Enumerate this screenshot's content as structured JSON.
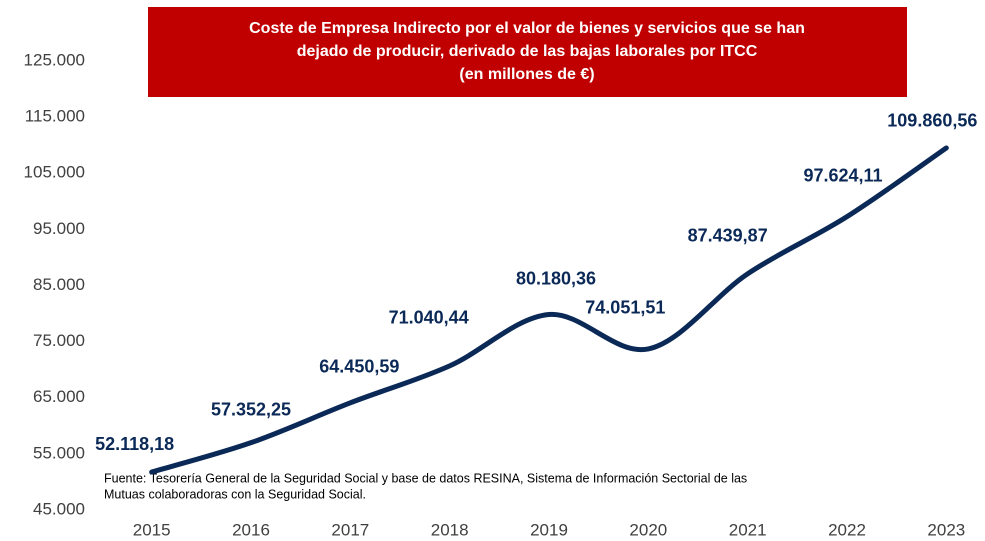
{
  "chart_data": {
    "type": "line",
    "title": [
      "Coste de Empresa Indirecto por el valor de bienes y servicios que se han",
      "dejado de producir, derivado de las bajas laborales por ITCC",
      "(en millones de €)"
    ],
    "source": [
      "Fuente: Tesorería General de la Seguridad Social y base de datos RESINA, Sistema de Información Sectorial de las",
      "Mutuas colaboradoras con la Seguridad Social."
    ],
    "categories": [
      "2015",
      "2016",
      "2017",
      "2018",
      "2019",
      "2020",
      "2021",
      "2022",
      "2023"
    ],
    "values": [
      52118.18,
      57352.25,
      64450.59,
      71040.44,
      80180.36,
      74051.51,
      87439.87,
      97624.11,
      109860.56
    ],
    "value_labels": [
      "52.118,18",
      "57.352,25",
      "64.450,59",
      "71.040,44",
      "80.180,36",
      "74.051,51",
      "87.439,87",
      "97.624,11",
      "109.860,56"
    ],
    "color": "#0b2957",
    "ylim": [
      45000,
      125000
    ],
    "yticks": [
      {
        "value": 45000,
        "label": "45.000"
      },
      {
        "value": 55000,
        "label": "55.000"
      },
      {
        "value": 65000,
        "label": "65.000"
      },
      {
        "value": 75000,
        "label": "75.000"
      },
      {
        "value": 85000,
        "label": "85.000"
      },
      {
        "value": 95000,
        "label": "95.000"
      },
      {
        "value": 105000,
        "label": "105.000"
      },
      {
        "value": 115000,
        "label": "115.000"
      },
      {
        "value": 125000,
        "label": "125.000"
      }
    ],
    "grid": false
  }
}
